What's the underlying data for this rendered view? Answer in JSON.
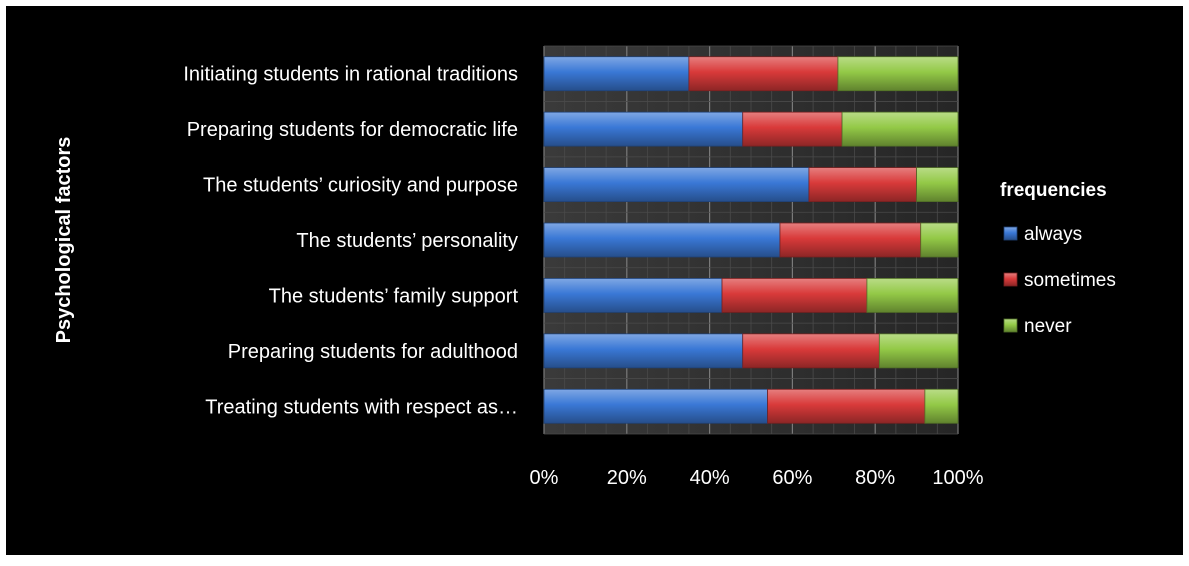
{
  "chart_data": {
    "type": "bar",
    "orientation": "horizontal",
    "stacked": "percent",
    "categories": [
      "Initiating students in rational traditions",
      "Preparing students for democratic life",
      "The students’ curiosity and purpose",
      "The students’ personality",
      "The students’ family support",
      "Preparing students for adulthood",
      "Treating students with respect as…"
    ],
    "series": [
      {
        "name": "always",
        "color": "#3a78d6",
        "values": [
          35,
          48,
          64,
          57,
          43,
          48,
          54
        ]
      },
      {
        "name": "sometimes",
        "color": "#d93a3a",
        "values": [
          36,
          24,
          26,
          34,
          35,
          33,
          38
        ]
      },
      {
        "name": "never",
        "color": "#93c947",
        "values": [
          29,
          28,
          10,
          9,
          22,
          19,
          8
        ]
      }
    ],
    "ylabel": "Psychological factors",
    "xlabel": "",
    "xlim": [
      0,
      100
    ],
    "x_ticks": [
      "0%",
      "20%",
      "40%",
      "60%",
      "80%",
      "100%"
    ],
    "legend_title": "frequencies",
    "legend_position": "right",
    "grid": true,
    "background": "#000000"
  }
}
